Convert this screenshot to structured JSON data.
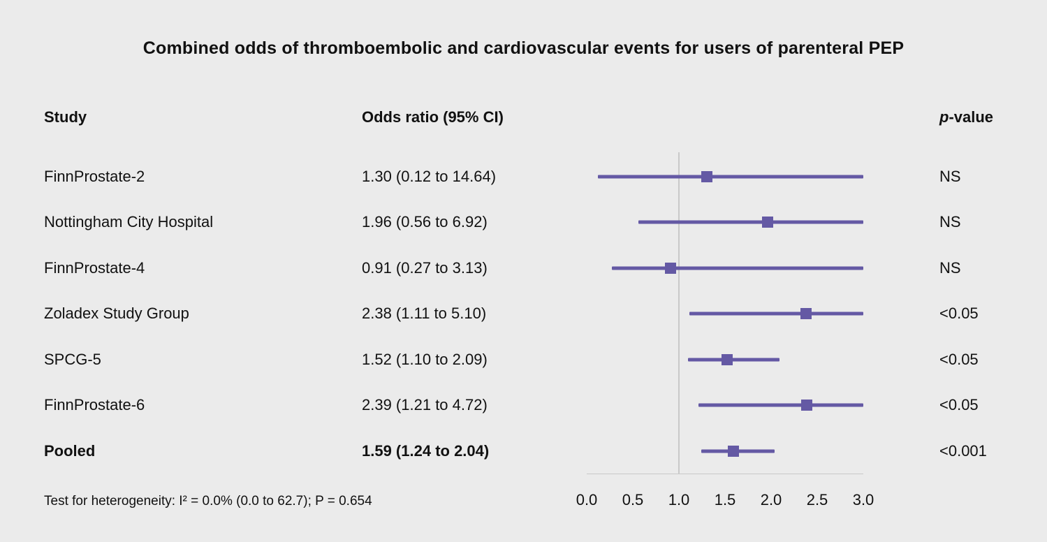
{
  "title": "Combined odds of thromboembolic and cardiovascular events for users of parenteral PEP",
  "columns": {
    "study": "Study",
    "odds_ratio": "Odds ratio (95% CI)",
    "p_italic": "p",
    "p_rest": "-value"
  },
  "footer": {
    "heterogeneity": "Test for heterogeneity: I² = 0.0% (0.0 to 62.7); P = 0.654"
  },
  "colors": {
    "accent": "#6459a4",
    "background": "#ebebeb",
    "reference_line": "#c9c9c9"
  },
  "chart_data": {
    "type": "forest",
    "title": "Combined odds of thromboembolic and cardiovascular events for users of parenteral PEP",
    "xlabel": "",
    "xlim": [
      0,
      3
    ],
    "xticks": [
      "0.0",
      "0.5",
      "1.0",
      "1.5",
      "2.0",
      "2.5",
      "3.0"
    ],
    "reference_line": 1.0,
    "rows": [
      {
        "study": "FinnProstate-2",
        "or": 1.3,
        "ci_low": 0.12,
        "ci_high": 14.64,
        "or_text": "1.30 (0.12 to 14.64)",
        "p": "NS",
        "bold": false
      },
      {
        "study": "Nottingham City Hospital",
        "or": 1.96,
        "ci_low": 0.56,
        "ci_high": 6.92,
        "or_text": "1.96 (0.56 to 6.92)",
        "p": "NS",
        "bold": false
      },
      {
        "study": "FinnProstate-4",
        "or": 0.91,
        "ci_low": 0.27,
        "ci_high": 3.13,
        "or_text": "0.91 (0.27 to 3.13)",
        "p": "NS",
        "bold": false
      },
      {
        "study": "Zoladex Study Group",
        "or": 2.38,
        "ci_low": 1.11,
        "ci_high": 5.1,
        "or_text": "2.38 (1.11 to 5.10)",
        "p": "<0.05",
        "bold": false
      },
      {
        "study": "SPCG-5",
        "or": 1.52,
        "ci_low": 1.1,
        "ci_high": 2.09,
        "or_text": "1.52 (1.10 to 2.09)",
        "p": "<0.05",
        "bold": false
      },
      {
        "study": "FinnProstate-6",
        "or": 2.39,
        "ci_low": 1.21,
        "ci_high": 4.72,
        "or_text": "2.39 (1.21 to 4.72)",
        "p": "<0.05",
        "bold": false
      },
      {
        "study": "Pooled",
        "or": 1.59,
        "ci_low": 1.24,
        "ci_high": 2.04,
        "or_text": "1.59 (1.24 to 2.04)",
        "p": "<0.001",
        "bold": true
      }
    ]
  }
}
